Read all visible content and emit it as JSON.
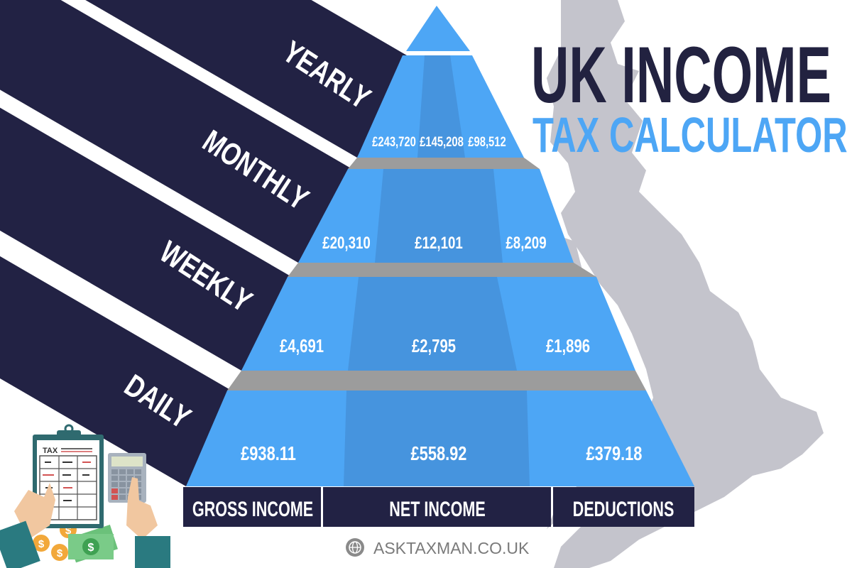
{
  "title": {
    "line1": "UK INCOME",
    "line2": "TAX CALCULATOR"
  },
  "periods": [
    {
      "label": "YEARLY",
      "gross": "£243,720",
      "net": "£145,208",
      "deductions": "£98,512"
    },
    {
      "label": "MONTHLY",
      "gross": "£20,310",
      "net": "£12,101",
      "deductions": "£8,209"
    },
    {
      "label": "WEEKLY",
      "gross": "£4,691",
      "net": "£2,795",
      "deductions": "£1,896"
    },
    {
      "label": "DAILY",
      "gross": "£938.11",
      "net": "£558.92",
      "deductions": "£379.18"
    }
  ],
  "columns": [
    "GROSS INCOME",
    "NET INCOME",
    "DEDUCTIONS"
  ],
  "illustration": {
    "clipboard_label": "TAX"
  },
  "footer": {
    "website": "ASKTAXMAN.CO.UK",
    "icon": "globe-icon"
  },
  "colors": {
    "navy": "#222244",
    "blue": "#4DA6F5",
    "blue_dark": "#4694DE",
    "gray_band": "#9C9C9C",
    "map": "#C4C4CC"
  }
}
